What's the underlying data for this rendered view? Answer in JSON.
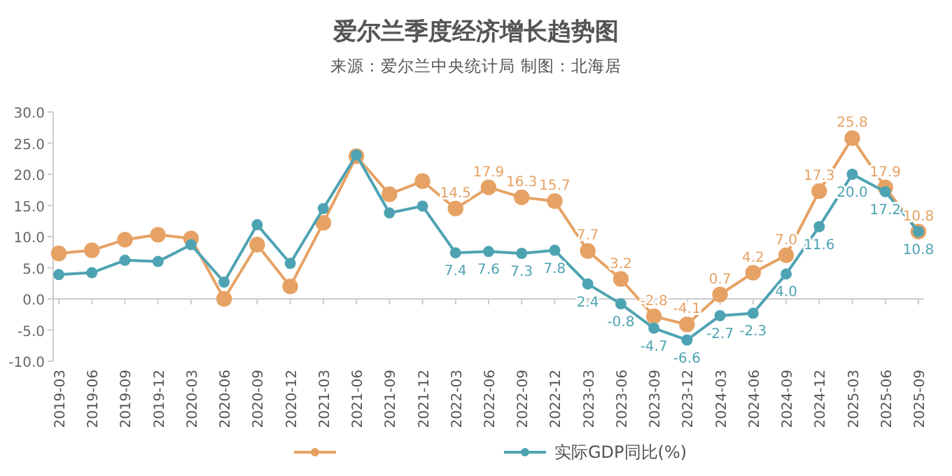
{
  "chart_data": {
    "type": "line",
    "title": "爱尔兰季度经济增长趋势图",
    "subtitle": "来源：爱尔兰中央统计局 制图：北海居",
    "categories": [
      "2019-03",
      "2019-06",
      "2019-09",
      "2019-12",
      "2020-03",
      "2020-06",
      "2020-09",
      "2020-12",
      "2021-03",
      "2021-06",
      "2021-09",
      "2021-12",
      "2022-03",
      "2022-06",
      "2022-09",
      "2022-12",
      "2023-03",
      "2023-06",
      "2023-09",
      "2023-12",
      "2024-03",
      "2024-06",
      "2024-09",
      "2024-12",
      "2025-03",
      "2025-06",
      "2025-09"
    ],
    "series": [
      {
        "color": "#e6a264",
        "values": [
          7.3,
          7.8,
          9.5,
          10.3,
          9.7,
          0.0,
          8.7,
          2.0,
          12.2,
          22.9,
          16.8,
          18.9,
          14.5,
          17.9,
          16.3,
          15.7,
          7.7,
          3.2,
          -2.8,
          -4.1,
          0.7,
          4.2,
          7.0,
          17.3,
          25.8,
          17.9,
          10.8
        ],
        "value_labels": [
          null,
          null,
          null,
          null,
          null,
          null,
          null,
          null,
          null,
          null,
          null,
          null,
          "14.5",
          "17.9",
          "16.3",
          "15.7",
          "7.7",
          "3.2",
          "-2.8",
          "-4.1",
          "0.7",
          "4.2",
          "7.0",
          "17.3",
          "25.8",
          "17.9",
          "10.8"
        ]
      },
      {
        "name": "实际GDP同比(%)",
        "color": "#4ea3b3",
        "values": [
          3.9,
          4.2,
          6.2,
          6.0,
          8.7,
          2.7,
          11.9,
          5.7,
          14.5,
          23.1,
          13.8,
          14.9,
          7.4,
          7.6,
          7.3,
          7.8,
          2.4,
          -0.8,
          -4.7,
          -6.6,
          -2.7,
          -2.3,
          4.0,
          11.6,
          20.0,
          17.2,
          10.8
        ],
        "value_labels": [
          null,
          null,
          null,
          null,
          null,
          null,
          null,
          null,
          null,
          null,
          null,
          null,
          "7.4",
          "7.6",
          "7.3",
          "7.8",
          "2.4",
          "-0.8",
          "-4.7",
          "-6.6",
          "-2.7",
          "-2.3",
          "4.0",
          "11.6",
          "20.0",
          "17.2",
          "10.8"
        ]
      }
    ],
    "ylim": [
      -10,
      30
    ],
    "yticks": [
      {
        "value": -10,
        "label": "-10.0"
      },
      {
        "value": -5,
        "label": "-5.0"
      },
      {
        "value": 0,
        "label": "0.0"
      },
      {
        "value": 5,
        "label": "5.0"
      },
      {
        "value": 10,
        "label": "10.0"
      },
      {
        "value": 15,
        "label": "15.0"
      },
      {
        "value": 20,
        "label": "20.0"
      },
      {
        "value": 25,
        "label": "25.0"
      },
      {
        "value": 30,
        "label": "30.0"
      }
    ],
    "legend": "bottom",
    "marker": "circle",
    "line_style": "solid"
  }
}
